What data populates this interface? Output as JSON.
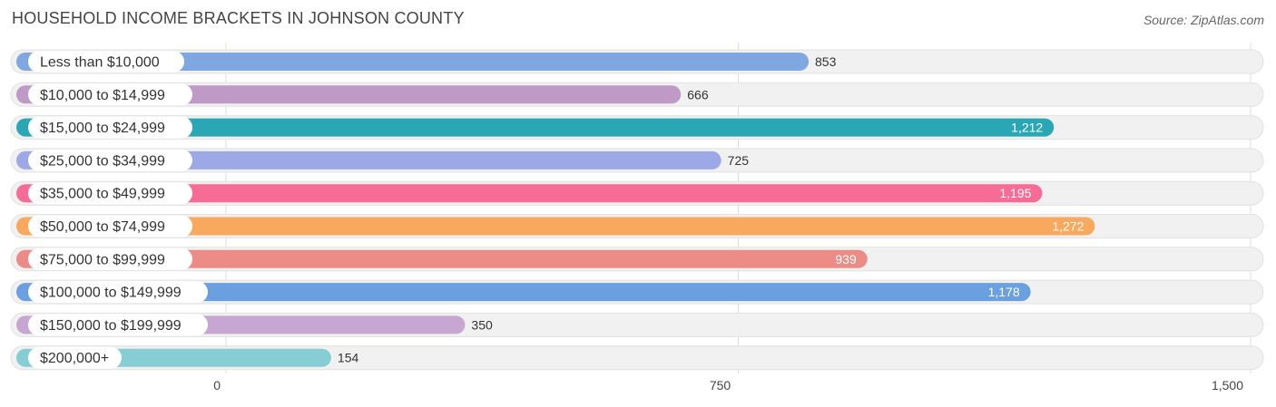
{
  "title": "HOUSEHOLD INCOME BRACKETS IN JOHNSON COUNTY",
  "source": "Source: ZipAtlas.com",
  "chart_data": {
    "type": "bar",
    "orientation": "horizontal",
    "title": "HOUSEHOLD INCOME BRACKETS IN JOHNSON COUNTY",
    "xlabel": "",
    "ylabel": "",
    "xlim": [
      0,
      1500
    ],
    "ticks": [
      {
        "value": 0,
        "label": "0"
      },
      {
        "value": 750,
        "label": "750"
      },
      {
        "value": 1500,
        "label": "1,500"
      }
    ],
    "grid": true,
    "categories": [
      "Less than $10,000",
      "$10,000 to $14,999",
      "$15,000 to $24,999",
      "$25,000 to $34,999",
      "$35,000 to $49,999",
      "$50,000 to $74,999",
      "$75,000 to $99,999",
      "$100,000 to $149,999",
      "$150,000 to $199,999",
      "$200,000+"
    ],
    "values": [
      853,
      666,
      1212,
      725,
      1195,
      1272,
      939,
      1178,
      350,
      154
    ],
    "value_labels": [
      "853",
      "666",
      "1,212",
      "725",
      "1,195",
      "1,272",
      "939",
      "1,178",
      "350",
      "154"
    ],
    "colors": [
      "#7fa8e0",
      "#c09ac6",
      "#2aa7b5",
      "#9da9e6",
      "#f66c96",
      "#f8a95e",
      "#eb8c86",
      "#6a9fe0",
      "#c8a6d2",
      "#86cdd6"
    ],
    "label_inside": [
      false,
      false,
      true,
      false,
      true,
      true,
      true,
      true,
      false,
      false
    ]
  }
}
